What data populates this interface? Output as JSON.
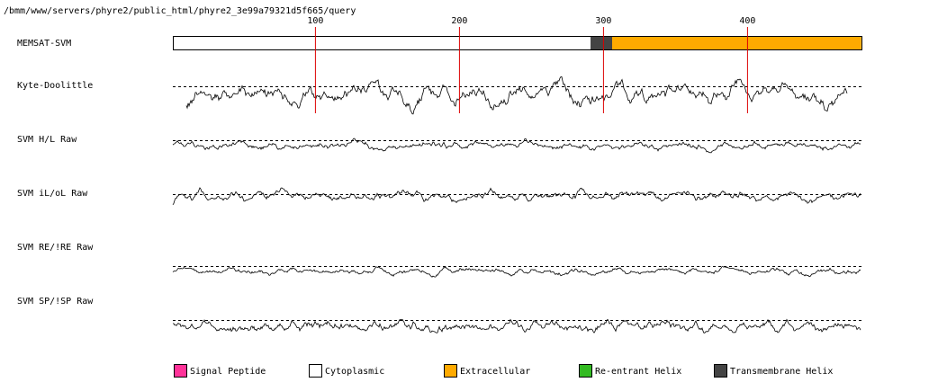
{
  "header": {
    "path": "/bmm/www/servers/phyre2/public_html/phyre2_3e99a79321d5f665/query"
  },
  "chart_data": {
    "type": "line",
    "title": "",
    "x_range": [
      1,
      479
    ],
    "x_ticks": [
      "100",
      "200",
      "300",
      "400"
    ],
    "x_tick_values": [
      100,
      200,
      300,
      400
    ],
    "tracks": [
      {
        "name": "MEMSAT-SVM",
        "kind": "topology"
      },
      {
        "name": "Kyte-Doolittle",
        "kind": "profile"
      },
      {
        "name": "SVM H/L Raw",
        "kind": "profile"
      },
      {
        "name": "SVM iL/oL Raw",
        "kind": "profile"
      },
      {
        "name": "SVM RE/!RE Raw",
        "kind": "profile"
      },
      {
        "name": "SVM SP/!SP Raw",
        "kind": "profile"
      }
    ],
    "topology": [
      {
        "type": "Cytoplasmic",
        "start": 1,
        "end": 291
      },
      {
        "type": "Transmembrane Helix",
        "start": 291,
        "end": 306
      },
      {
        "type": "Extracellular",
        "start": 306,
        "end": 479
      }
    ],
    "legend": [
      {
        "label": "Signal Peptide",
        "color": "#ff3399"
      },
      {
        "label": "Cytoplasmic",
        "color": "#ffffff"
      },
      {
        "label": "Extracellular",
        "color": "#ffaa00"
      },
      {
        "label": "Re-entrant Helix",
        "color": "#33bb22"
      },
      {
        "label": "Transmembrane Helix",
        "color": "#444444"
      }
    ],
    "legend_position": "bottom",
    "tick_line_color": "#dd0000"
  }
}
